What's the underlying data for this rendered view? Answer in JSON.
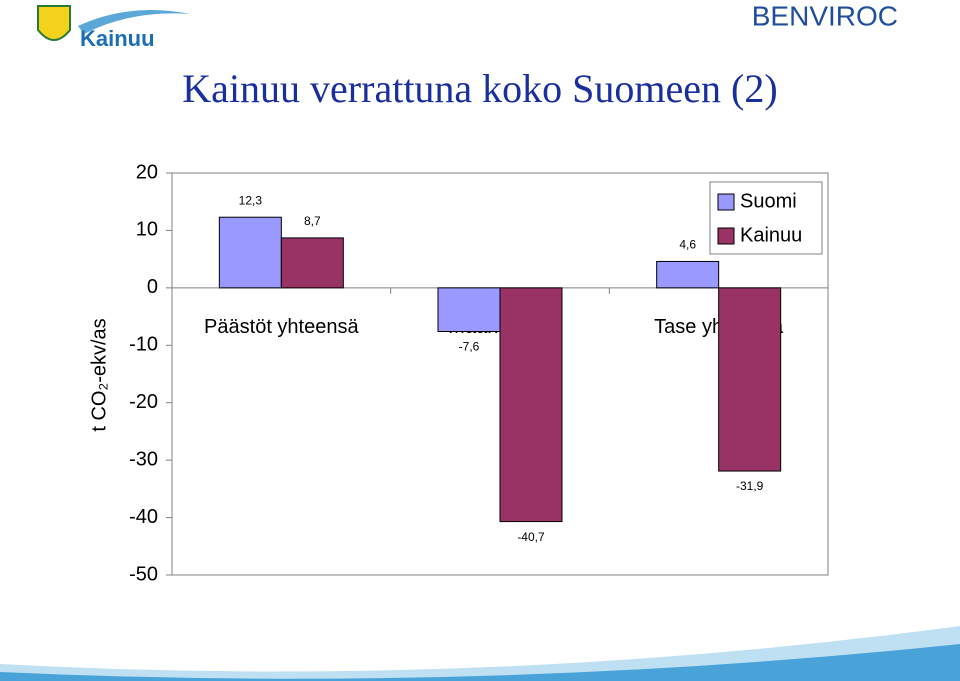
{
  "logo": {
    "text": "Kainuu"
  },
  "brand": "BENVIROC",
  "chart_data": {
    "type": "bar",
    "title": "Kainuu verrattuna koko Suomeen (2)",
    "y_label": "t CO₂-ekv/as",
    "categories": [
      "Päästöt yhteensä",
      "Maankäyttö",
      "Tase yhteensä"
    ],
    "series": [
      {
        "name": "Suomi",
        "color": "#9999ff",
        "values": [
          12.3,
          -7.6,
          4.6
        ],
        "value_labels": [
          "12,3",
          "-7,6",
          "4,6"
        ]
      },
      {
        "name": "Kainuu",
        "color": "#993366",
        "values": [
          8.7,
          -40.7,
          -31.9
        ],
        "value_labels": [
          "8,7",
          "-40,7",
          "-31,9"
        ]
      }
    ],
    "ylim": [
      -50,
      20
    ],
    "yticks": [
      -50,
      -40,
      -30,
      -20,
      -10,
      0,
      10,
      20
    ],
    "legend": "top-right"
  }
}
